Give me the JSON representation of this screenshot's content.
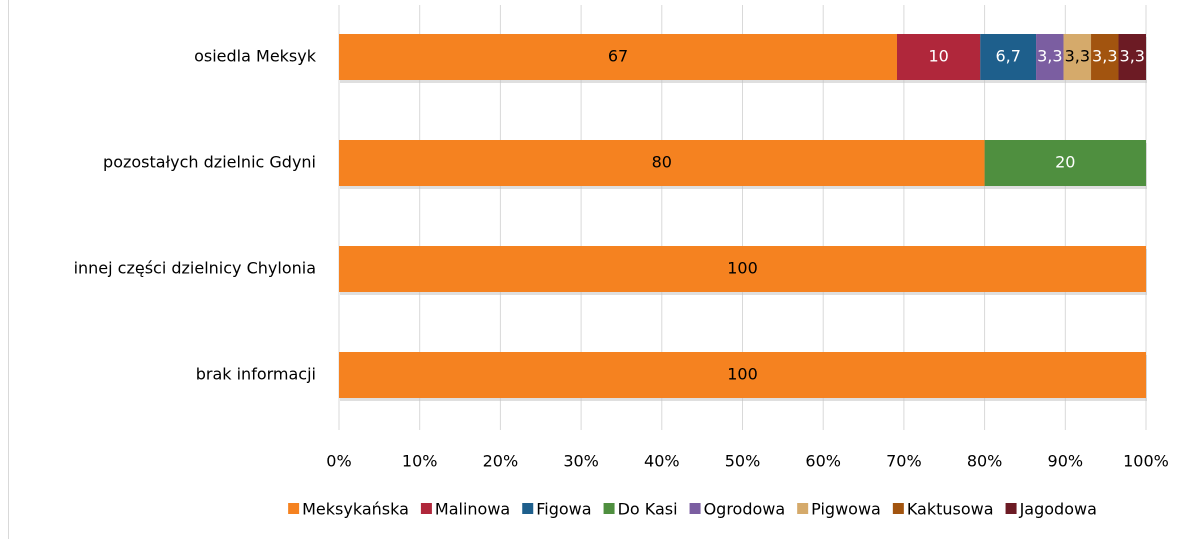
{
  "chart_data": {
    "type": "stacked_percent_bar",
    "orientation": "horizontal",
    "categories": [
      "osiedla Meksyk",
      "pozostałych dzielnic Gdyni",
      "innej części dzielnicy Chylonia",
      "brak informacji"
    ],
    "series": [
      {
        "name": "Meksykańska",
        "color": "#f58220",
        "values": [
          67,
          80,
          100,
          100
        ]
      },
      {
        "name": "Malinowa",
        "color": "#b0273b",
        "values": [
          10,
          null,
          null,
          null
        ]
      },
      {
        "name": "Figowa",
        "color": "#1e5f8c",
        "values": [
          6.7,
          null,
          null,
          null
        ],
        "value_labels": [
          "6,7",
          null,
          null,
          null
        ]
      },
      {
        "name": "Do Kasi",
        "color": "#4f8f3f",
        "values": [
          null,
          20,
          null,
          null
        ]
      },
      {
        "name": "Ogrodowa",
        "color": "#7b5ea1",
        "values": [
          3.3,
          null,
          null,
          null
        ],
        "value_labels": [
          "3,3",
          null,
          null,
          null
        ]
      },
      {
        "name": "Pigwowa",
        "color": "#d5aa6b",
        "values": [
          3.3,
          null,
          null,
          null
        ],
        "value_labels": [
          "3,3",
          null,
          null,
          null
        ]
      },
      {
        "name": "Kaktusowa",
        "color": "#a2540f",
        "values": [
          3.3,
          null,
          null,
          null
        ],
        "value_labels": [
          "3,3",
          null,
          null,
          null
        ]
      },
      {
        "name": "Jagodowa",
        "color": "#6c1b24",
        "values": [
          3.3,
          null,
          null,
          null
        ],
        "value_labels": [
          "3,3",
          null,
          null,
          null
        ]
      }
    ],
    "xlim": [
      0,
      100
    ],
    "xticks": [
      {
        "value": 0,
        "label": "0%"
      },
      {
        "value": 10,
        "label": "10%"
      },
      {
        "value": 20,
        "label": "20%"
      },
      {
        "value": 30,
        "label": "30%"
      },
      {
        "value": 40,
        "label": "40%"
      },
      {
        "value": 50,
        "label": "50%"
      },
      {
        "value": 60,
        "label": "60%"
      },
      {
        "value": 70,
        "label": "70%"
      },
      {
        "value": 80,
        "label": "80%"
      },
      {
        "value": 90,
        "label": "90%"
      },
      {
        "value": 100,
        "label": "100%"
      }
    ],
    "grid": true,
    "legend": "bottom"
  }
}
